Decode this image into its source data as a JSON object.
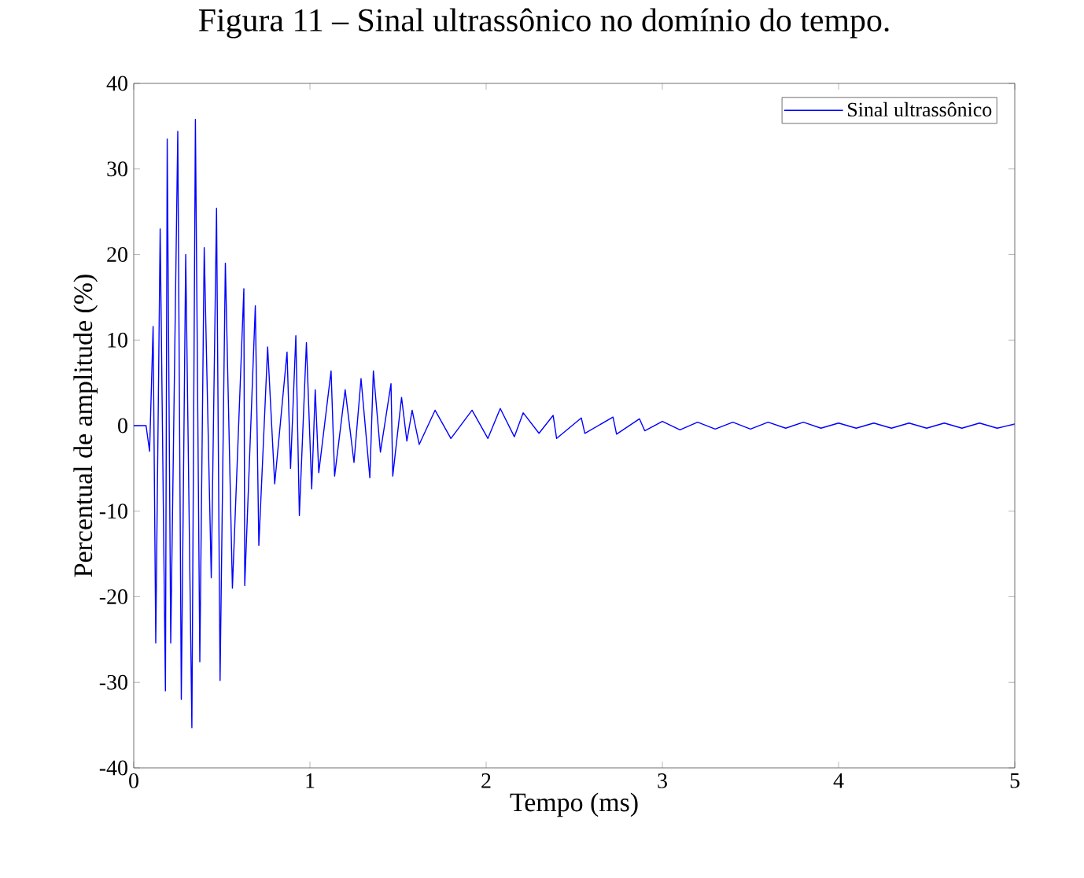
{
  "chart_data": {
    "type": "line",
    "title": "Figura 11 – Sinal ultrassônico no domínio do tempo.",
    "xlabel": "Tempo (ms)",
    "ylabel": "Percentual de amplitude (%)",
    "xlim": [
      0,
      5
    ],
    "ylim": [
      -40,
      40
    ],
    "xticks": [
      0,
      1,
      2,
      3,
      4,
      5
    ],
    "yticks": [
      -40,
      -30,
      -20,
      -10,
      0,
      10,
      20,
      30,
      40
    ],
    "grid": false,
    "legend": "top right",
    "marker": "none",
    "line_style": "solid",
    "series": [
      {
        "name": "Sinal ultrassônico",
        "color": "#0000ff",
        "x": [
          0,
          0.07,
          0.09,
          0.11,
          0.125,
          0.15,
          0.18,
          0.19,
          0.21,
          0.25,
          0.27,
          0.295,
          0.33,
          0.35,
          0.375,
          0.4,
          0.44,
          0.47,
          0.49,
          0.52,
          0.56,
          0.625,
          0.63,
          0.69,
          0.71,
          0.76,
          0.8,
          0.87,
          0.89,
          0.92,
          0.94,
          0.98,
          1.01,
          1.03,
          1.05,
          1.12,
          1.14,
          1.2,
          1.25,
          1.29,
          1.34,
          1.36,
          1.4,
          1.46,
          1.47,
          1.52,
          1.55,
          1.58,
          1.62,
          1.71,
          1.8,
          1.92,
          2.01,
          2.08,
          2.16,
          2.21,
          2.3,
          2.38,
          2.4,
          2.54,
          2.56,
          2.72,
          2.74,
          2.87,
          2.9,
          3.0,
          3.1,
          3.2,
          3.3,
          3.4,
          3.5,
          3.6,
          3.7,
          3.8,
          3.9,
          4.0,
          4.1,
          4.2,
          4.3,
          4.4,
          4.5,
          4.6,
          4.7,
          4.8,
          4.9,
          5.0
        ],
        "values": [
          0,
          0,
          -3,
          11.6,
          -25.4,
          23,
          -31,
          33.5,
          -25.4,
          34.4,
          -32,
          20,
          -35.3,
          35.8,
          -27.6,
          20.8,
          -17.8,
          25.4,
          -29.8,
          19,
          -19,
          16,
          -18.7,
          14,
          -14,
          9.2,
          -6.8,
          8.6,
          -5,
          10.5,
          -10.5,
          9.7,
          -7.4,
          4.2,
          -5.5,
          6.4,
          -5.9,
          4.2,
          -4.3,
          5.5,
          -6.1,
          6.4,
          -3.1,
          4.9,
          -5.9,
          3.3,
          -1.8,
          1.8,
          -2.2,
          1.8,
          -1.5,
          1.8,
          -1.5,
          2,
          -1.3,
          1.5,
          -0.9,
          1.2,
          -1.5,
          0.9,
          -0.9,
          1,
          -1,
          0.8,
          -0.6,
          0.5,
          -0.5,
          0.4,
          -0.4,
          0.4,
          -0.4,
          0.4,
          -0.3,
          0.4,
          -0.3,
          0.3,
          -0.3,
          0.3,
          -0.3,
          0.3,
          -0.3,
          0.3,
          -0.3,
          0.3,
          -0.3,
          0.2
        ]
      }
    ]
  }
}
